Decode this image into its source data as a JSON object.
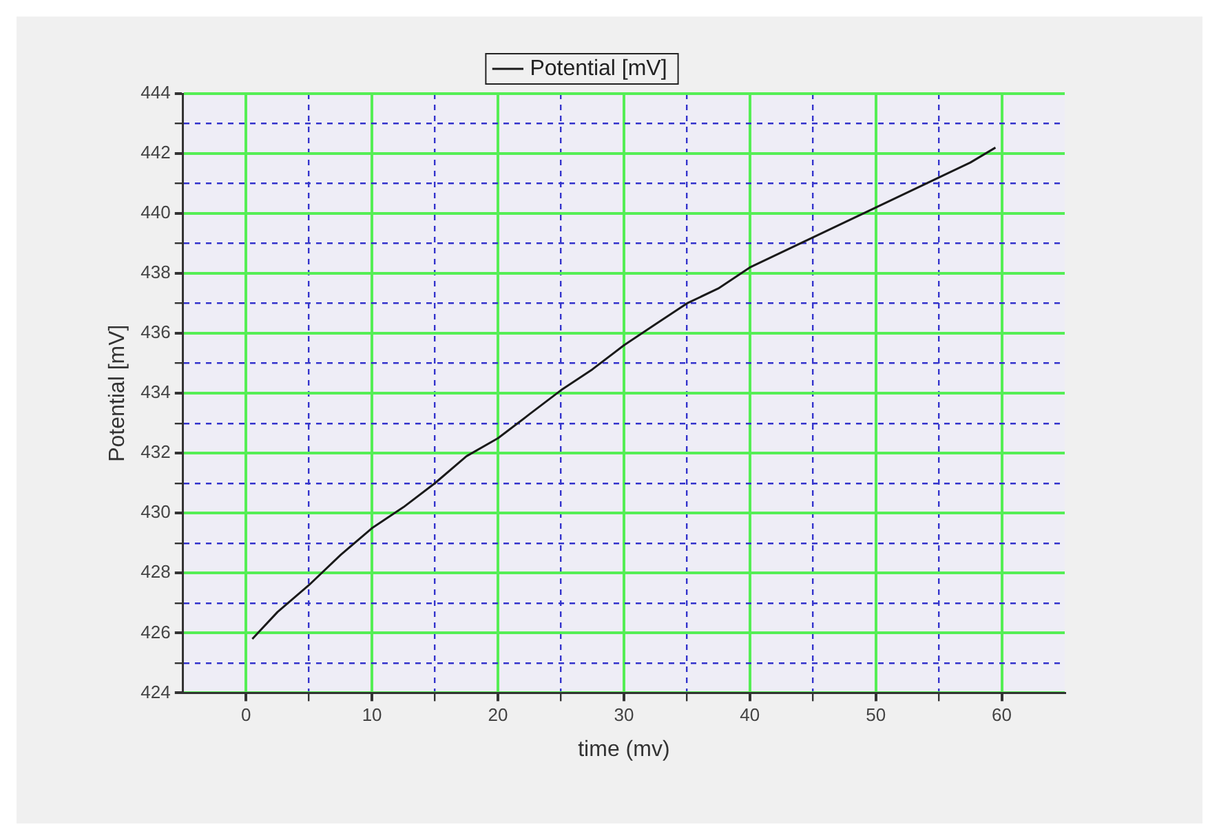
{
  "chart_data": {
    "type": "line",
    "xlabel": "time (mv)",
    "ylabel": "Potential [mV]",
    "x": [
      0.5,
      2.5,
      5,
      7.5,
      10,
      12.5,
      15,
      17.5,
      20,
      22.5,
      25,
      27.5,
      30,
      32.5,
      35,
      37.5,
      40,
      42.5,
      45,
      47.5,
      50,
      52.5,
      55,
      57.5,
      59.5
    ],
    "series": [
      {
        "name": "Potential [mV]",
        "color": "#1a1a1a",
        "values": [
          425.8,
          426.7,
          427.6,
          428.6,
          429.5,
          430.2,
          431.0,
          431.9,
          432.5,
          433.3,
          434.1,
          434.8,
          435.6,
          436.3,
          437.0,
          437.5,
          438.2,
          438.7,
          439.2,
          439.7,
          440.2,
          440.7,
          441.2,
          441.7,
          442.2
        ]
      }
    ],
    "xlim": [
      -5,
      65
    ],
    "xticks": [
      0,
      {
        "value": 5,
        "label": null
      },
      10,
      {
        "value": 15,
        "label": null
      },
      20,
      {
        "value": 25,
        "label": null
      },
      30,
      {
        "value": 35,
        "label": null
      },
      40,
      {
        "value": 45,
        "label": null
      },
      50,
      {
        "value": 55,
        "label": null
      },
      60
    ],
    "ylim": [
      424,
      444
    ],
    "yticks": [
      424,
      {
        "value": 425,
        "label": null
      },
      426,
      {
        "value": 427,
        "label": null
      },
      428,
      {
        "value": 429,
        "label": null
      },
      430,
      {
        "value": 431,
        "label": null
      },
      432,
      {
        "value": 433,
        "label": null
      },
      434,
      {
        "value": 435,
        "label": null
      },
      436,
      {
        "value": 437,
        "label": null
      },
      438,
      {
        "value": 439,
        "label": null
      },
      440,
      {
        "value": 441,
        "label": null
      },
      442,
      {
        "value": 443,
        "label": null
      },
      444
    ],
    "grid": true,
    "legend": "top",
    "marker": "none",
    "line_style": "solid"
  }
}
